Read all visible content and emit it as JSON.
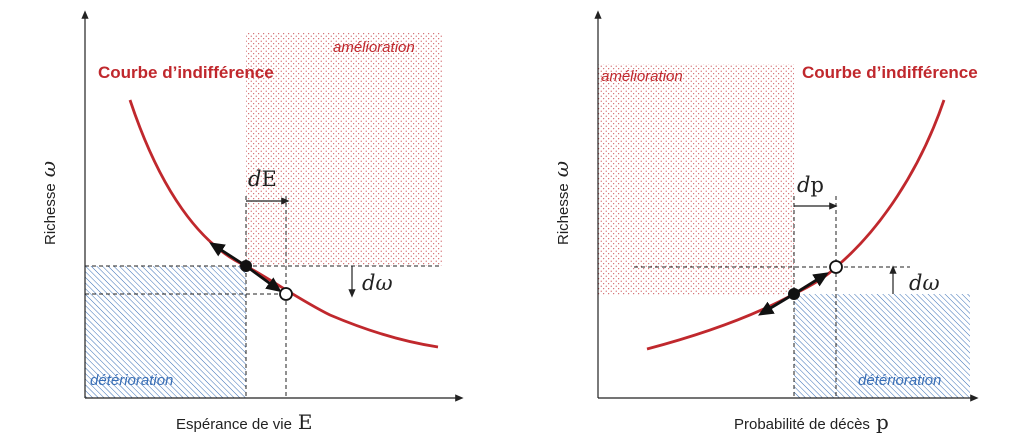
{
  "colors": {
    "curve": "#c0282d",
    "improvement": "#c0282d",
    "deterioration": "#3a6fb6",
    "axis": "#222222",
    "guide": "#222222"
  },
  "left_panel": {
    "y_axis_label": "Richesse",
    "y_axis_symbol": "ω",
    "x_axis_label": "Espérance de vie",
    "x_axis_symbol": "E",
    "curve_label": "Courbe d’indifférence",
    "improvement_label": "amélioration",
    "deterioration_label": "détérioration",
    "dx_label_d": "d",
    "dx_label_var": "E",
    "dw_label_d": "d",
    "dw_label_var": "ω"
  },
  "right_panel": {
    "y_axis_label": "Richesse",
    "y_axis_symbol": "ω",
    "x_axis_label": "Probabilité de décès",
    "x_axis_symbol": "p",
    "curve_label": "Courbe d’indifférence",
    "improvement_label": "amélioration",
    "deterioration_label": "détérioration",
    "dx_label_d": "d",
    "dx_label_var": "p",
    "dw_label_d": "d",
    "dw_label_var": "ω"
  }
}
